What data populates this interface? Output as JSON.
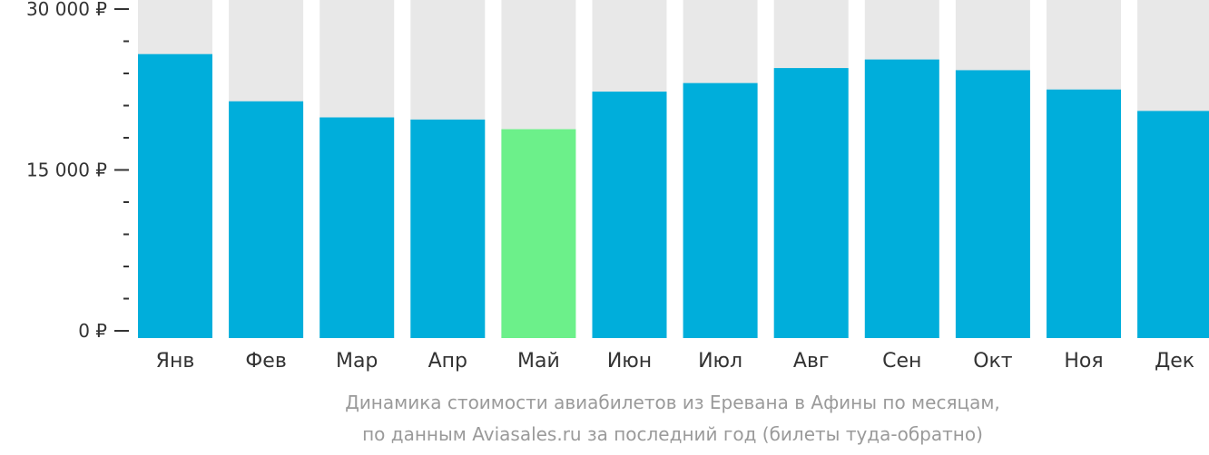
{
  "chart_data": {
    "type": "bar",
    "categories": [
      "Янв",
      "Фев",
      "Мар",
      "Апр",
      "Май",
      "Июн",
      "Июл",
      "Авг",
      "Сен",
      "Окт",
      "Ноя",
      "Дек"
    ],
    "values": [
      25800,
      21400,
      19900,
      19700,
      18800,
      22300,
      23100,
      24500,
      25300,
      24300,
      22500,
      20500
    ],
    "ylim": [
      0,
      30000
    ],
    "yticks": [
      {
        "value": 0,
        "label": "0 ₽"
      },
      {
        "value": 15000,
        "label": "15 000 ₽"
      },
      {
        "value": 30000,
        "label": "30 000 ₽"
      }
    ],
    "minor_tick_step": 3000,
    "highlight_index": 4,
    "colors": {
      "bar": "#00aedb",
      "highlight": "#6cf08a",
      "background_track": "#e8e8e8",
      "axis": "#333333"
    },
    "caption": [
      "Динамика стоимости авиабилетов из Еревана в Афины по месяцам,",
      "по данным Aviasales.ru за последний год (билеты туда-обратно)"
    ],
    "grid": false,
    "legend": "none"
  }
}
